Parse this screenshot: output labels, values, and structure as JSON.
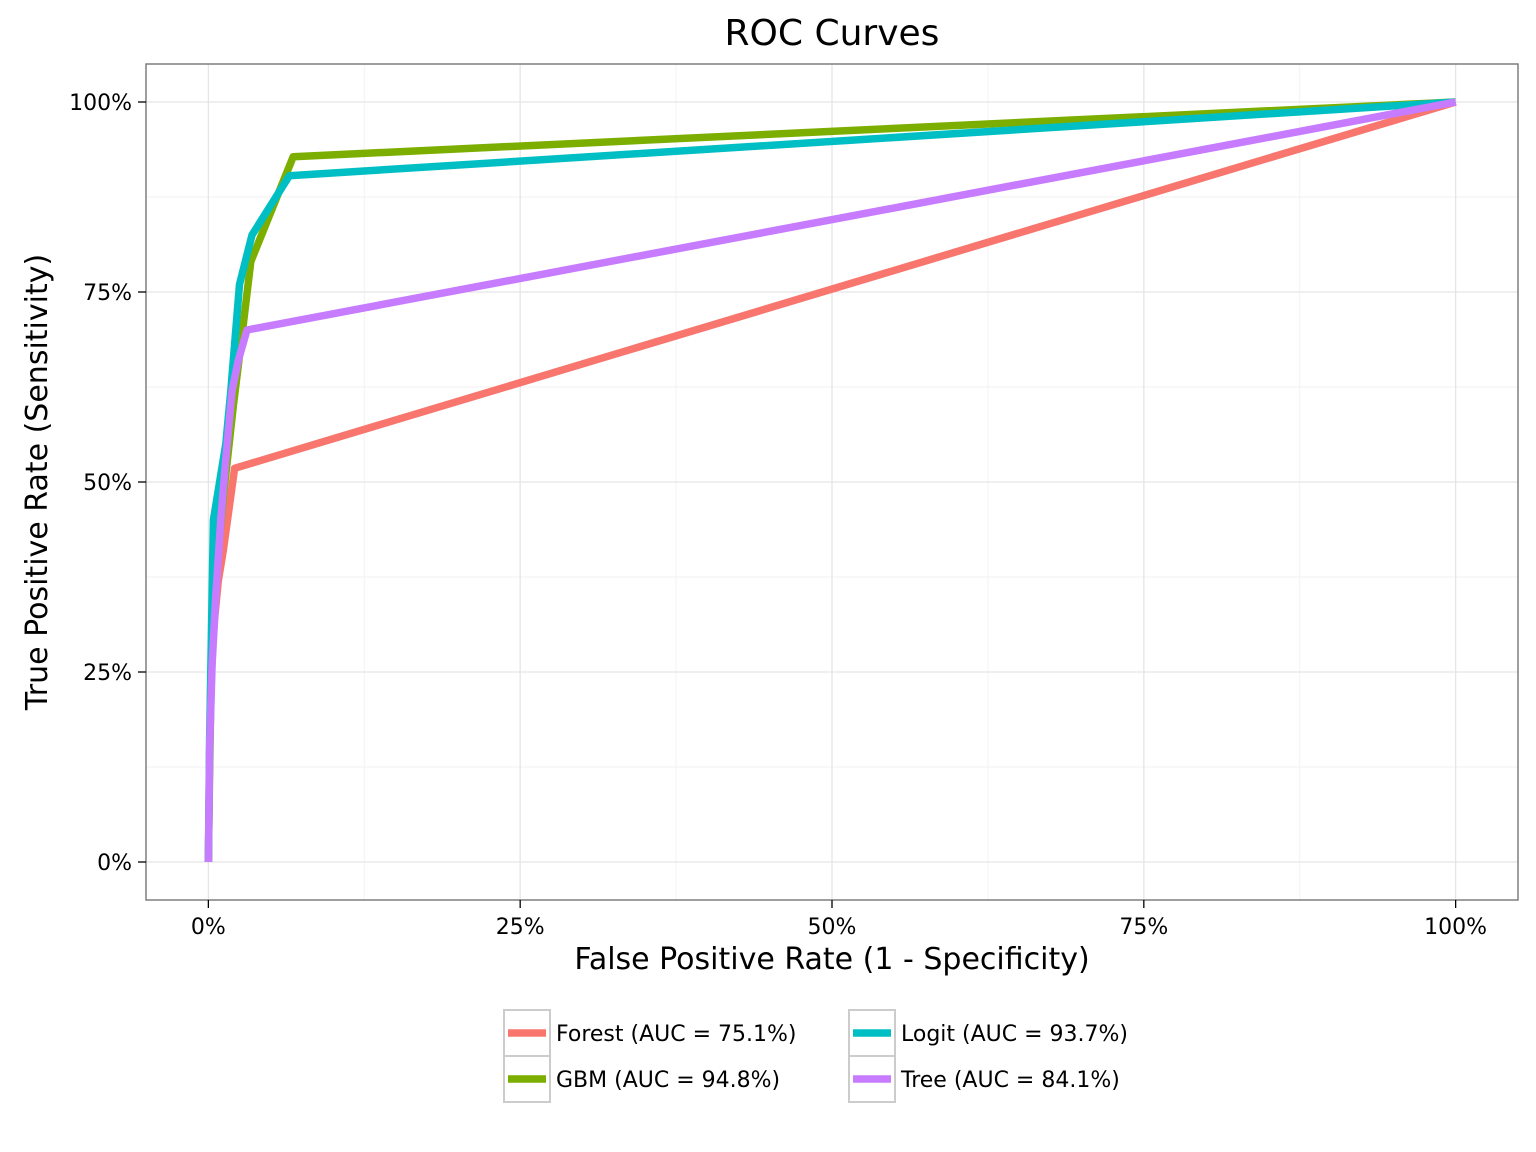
{
  "chart_data": {
    "type": "line",
    "title": "ROC Curves",
    "xlabel": "False Positive Rate (1 - Specificity)",
    "ylabel": "True Positive Rate (Sensitivity)",
    "xlim": [
      -0.05,
      1.05
    ],
    "ylim": [
      -0.05,
      1.05
    ],
    "x_ticks": [
      0,
      0.25,
      0.5,
      0.75,
      1
    ],
    "x_tick_labels": [
      "0%",
      "25%",
      "50%",
      "75%",
      "100%"
    ],
    "y_ticks": [
      0,
      0.25,
      0.5,
      0.75,
      1
    ],
    "y_tick_labels": [
      "0%",
      "25%",
      "50%",
      "75%",
      "100%"
    ],
    "grid": true,
    "legend_position": "bottom",
    "series": [
      {
        "name": "Forest (AUC =  75.1%)",
        "color": "#F8766D",
        "points": [
          [
            0,
            0
          ],
          [
            0.001,
            0.14
          ],
          [
            0.002,
            0.25
          ],
          [
            0.005,
            0.32
          ],
          [
            0.008,
            0.37
          ],
          [
            0.012,
            0.41
          ],
          [
            0.021,
            0.518
          ],
          [
            1,
            1
          ]
        ]
      },
      {
        "name": "GBM (AUC =  94.8%)",
        "color": "#7CAE00",
        "points": [
          [
            0,
            0
          ],
          [
            0.001,
            0.12
          ],
          [
            0.002,
            0.22
          ],
          [
            0.004,
            0.32
          ],
          [
            0.008,
            0.41
          ],
          [
            0.012,
            0.48
          ],
          [
            0.016,
            0.54
          ],
          [
            0.02,
            0.6
          ],
          [
            0.026,
            0.68
          ],
          [
            0.034,
            0.79
          ],
          [
            0.068,
            0.928
          ],
          [
            1,
            1
          ]
        ]
      },
      {
        "name": "Logit (AUC =  93.7%)",
        "color": "#00BFC4",
        "points": [
          [
            0,
            0
          ],
          [
            0.001,
            0.16
          ],
          [
            0.002,
            0.26
          ],
          [
            0.004,
            0.45
          ],
          [
            0.009,
            0.5
          ],
          [
            0.014,
            0.55
          ],
          [
            0.018,
            0.62
          ],
          [
            0.025,
            0.76
          ],
          [
            0.035,
            0.825
          ],
          [
            0.065,
            0.903
          ],
          [
            1,
            1
          ]
        ]
      },
      {
        "name": "Tree (AUC =  84.1%)",
        "color": "#C77CFF",
        "points": [
          [
            0,
            0
          ],
          [
            0.001,
            0.15
          ],
          [
            0.003,
            0.26
          ],
          [
            0.006,
            0.35
          ],
          [
            0.01,
            0.45
          ],
          [
            0.014,
            0.53
          ],
          [
            0.019,
            0.62
          ],
          [
            0.024,
            0.66
          ],
          [
            0.031,
            0.7
          ],
          [
            1,
            1
          ]
        ]
      }
    ]
  }
}
